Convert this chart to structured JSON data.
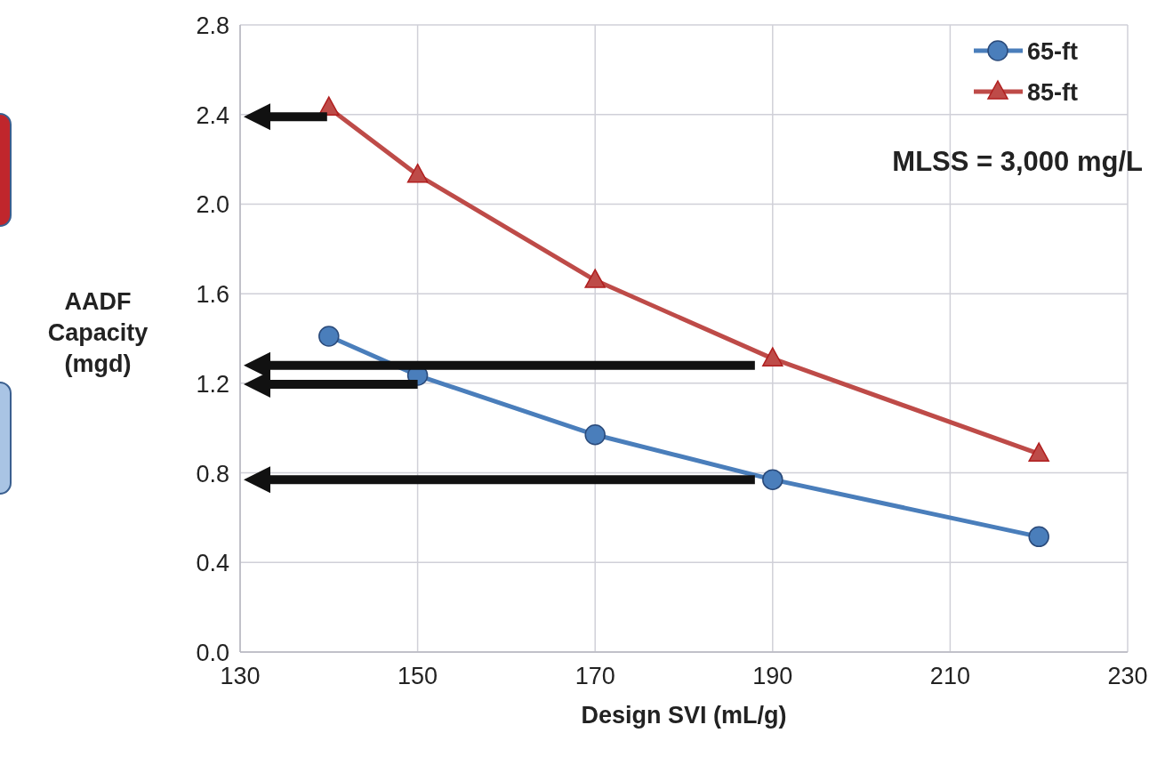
{
  "chart_data": {
    "type": "line",
    "xlabel": "Design SVI (mL/g)",
    "ylabel": "AADF Capacity (mgd)",
    "x": [
      140,
      150,
      170,
      190,
      220
    ],
    "series": [
      {
        "name": "65-ft",
        "color": "#4a7ebb",
        "values": [
          1.41,
          1.235,
          0.97,
          0.77,
          0.515
        ],
        "marker": "circle"
      },
      {
        "name": "85-ft",
        "color": "#be4b48",
        "values": [
          2.43,
          2.13,
          1.66,
          1.31,
          0.885
        ],
        "marker": "triangle"
      }
    ],
    "xlim": [
      130,
      230
    ],
    "xticks": [
      130,
      150,
      170,
      190,
      210,
      230
    ],
    "ylim": [
      0,
      2.8
    ],
    "yticks": [
      {
        "value": 0,
        "label": "0.0"
      },
      {
        "value": 0.4,
        "label": "0.4"
      },
      {
        "value": 0.8,
        "label": "0.8"
      },
      {
        "value": 1.2,
        "label": "1.2"
      },
      {
        "value": 1.6,
        "label": "1.6"
      },
      {
        "value": 2,
        "label": "2.0"
      },
      {
        "value": 2.4,
        "label": "2.4"
      },
      {
        "value": 2.8,
        "label": "2.8"
      }
    ],
    "grid": true,
    "legend": "top right",
    "line_style": "solid",
    "annotations": [
      "MLSS = 3,000 mg/L"
    ]
  }
}
